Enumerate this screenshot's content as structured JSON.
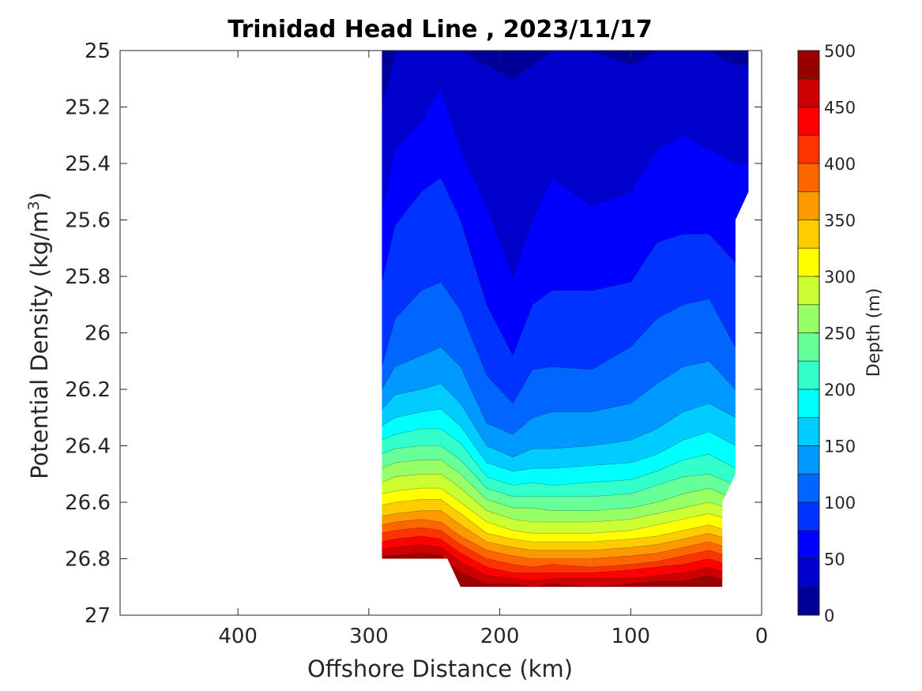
{
  "chart_data": {
    "type": "contourf",
    "title": "Trinidad Head Line , 2023/11/17",
    "xlabel": "Offshore Distance (km)",
    "ylabel_main": "Potential Density (kg/m",
    "ylabel_sup": "3",
    "ylabel_tail": ")",
    "xlim": [
      490,
      0
    ],
    "x_reversed": true,
    "ylim": [
      25,
      27
    ],
    "y_reversed": true,
    "xticks": [
      400,
      300,
      200,
      100,
      0
    ],
    "xtick_labels": [
      "400",
      "300",
      "200",
      "100",
      "0"
    ],
    "yticks": [
      25,
      25.2,
      25.4,
      25.6,
      25.8,
      26,
      26.2,
      26.4,
      26.6,
      26.8,
      27
    ],
    "ytick_labels": [
      "25",
      "25.2",
      "25.4",
      "25.6",
      "25.8",
      "26",
      "26.2",
      "26.4",
      "26.6",
      "26.8",
      "27"
    ],
    "colorbar": {
      "label": "Depth (m)",
      "colormap": "jet",
      "clim": [
        0,
        500
      ],
      "level_step": 25,
      "ticks": [
        0,
        50,
        100,
        150,
        200,
        250,
        300,
        350,
        400,
        450,
        500
      ],
      "tick_labels": [
        "0",
        "50",
        "100",
        "150",
        "200",
        "250",
        "300",
        "350",
        "400",
        "450",
        "500"
      ]
    },
    "data_extent": {
      "x_outline": [
        290,
        240,
        230,
        30,
        30,
        20,
        20,
        10,
        10,
        290
      ],
      "y_outline": [
        26.8,
        26.8,
        26.9,
        26.9,
        26.6,
        26.5,
        25.6,
        25.5,
        25.0,
        25.0
      ]
    },
    "profiles": {
      "x": [
        290,
        280,
        260,
        245,
        230,
        210,
        190,
        175,
        160,
        130,
        100,
        80,
        60,
        40,
        20
      ],
      "y_at_depth": {
        "25": [
          25.2,
          25.0,
          25.0,
          25.0,
          25.0,
          25.05,
          25.1,
          25.05,
          25.0,
          25.0,
          25.05,
          25.0,
          25.0,
          25.0,
          25.05
        ],
        "50": [
          25.56,
          25.35,
          25.25,
          25.13,
          25.35,
          25.55,
          25.8,
          25.6,
          25.45,
          25.55,
          25.5,
          25.35,
          25.3,
          25.35,
          25.4
        ],
        "75": [
          25.82,
          25.62,
          25.5,
          25.45,
          25.6,
          25.9,
          26.08,
          25.9,
          25.85,
          25.85,
          25.82,
          25.68,
          25.65,
          25.65,
          25.75
        ],
        "100": [
          26.12,
          25.95,
          25.85,
          25.82,
          25.92,
          26.15,
          26.25,
          26.13,
          26.12,
          26.13,
          26.05,
          25.95,
          25.9,
          25.88,
          26.05
        ],
        "125": [
          26.2,
          26.12,
          26.08,
          26.05,
          26.12,
          26.32,
          26.36,
          26.3,
          26.28,
          26.28,
          26.25,
          26.18,
          26.12,
          26.1,
          26.2
        ],
        "150": [
          26.27,
          26.22,
          26.2,
          26.18,
          26.25,
          26.4,
          26.44,
          26.41,
          26.41,
          26.4,
          26.38,
          26.34,
          26.28,
          26.25,
          26.3
        ],
        "175": [
          26.33,
          26.3,
          26.28,
          26.27,
          26.33,
          26.46,
          26.49,
          26.48,
          26.48,
          26.47,
          26.46,
          26.43,
          26.38,
          26.35,
          26.4
        ],
        "200": [
          26.38,
          26.36,
          26.34,
          26.34,
          26.39,
          26.51,
          26.54,
          26.53,
          26.54,
          26.53,
          26.52,
          26.49,
          26.45,
          26.43,
          26.48
        ],
        "225": [
          26.43,
          26.41,
          26.4,
          26.4,
          26.45,
          26.55,
          26.58,
          26.58,
          26.58,
          26.58,
          26.57,
          26.54,
          26.51,
          26.5,
          26.54
        ],
        "250": [
          26.48,
          26.46,
          26.45,
          26.45,
          26.5,
          26.59,
          26.62,
          26.62,
          26.63,
          26.63,
          26.62,
          26.6,
          26.57,
          26.55,
          26.59
        ],
        "275": [
          26.53,
          26.51,
          26.5,
          26.5,
          26.55,
          26.63,
          26.66,
          26.67,
          26.67,
          26.67,
          26.66,
          26.64,
          26.62,
          26.6,
          26.63
        ],
        "300": [
          26.57,
          26.56,
          26.55,
          26.55,
          26.6,
          26.67,
          26.7,
          26.71,
          26.71,
          26.71,
          26.7,
          26.68,
          26.66,
          26.64,
          26.67
        ],
        "325": [
          26.61,
          26.6,
          26.59,
          26.59,
          26.64,
          26.71,
          26.73,
          26.74,
          26.74,
          26.74,
          26.73,
          26.72,
          26.7,
          26.68,
          26.71
        ],
        "350": [
          26.65,
          26.64,
          26.63,
          26.63,
          26.68,
          26.74,
          26.76,
          26.77,
          26.77,
          26.77,
          26.76,
          26.75,
          26.73,
          26.71,
          26.74
        ],
        "375": [
          26.68,
          26.67,
          26.66,
          26.67,
          26.72,
          26.77,
          26.79,
          26.8,
          26.8,
          26.8,
          26.79,
          26.78,
          26.76,
          26.74,
          26.77
        ],
        "400": [
          26.71,
          26.7,
          26.69,
          26.7,
          26.75,
          26.8,
          26.82,
          26.83,
          26.82,
          26.83,
          26.82,
          26.81,
          26.79,
          26.77,
          26.8
        ],
        "425": [
          26.74,
          26.73,
          26.72,
          26.73,
          26.78,
          26.83,
          26.85,
          26.85,
          26.85,
          26.85,
          26.84,
          26.83,
          26.82,
          26.8,
          26.83
        ],
        "450": [
          26.77,
          26.76,
          26.75,
          26.76,
          26.81,
          26.86,
          26.87,
          26.88,
          26.87,
          26.87,
          26.87,
          26.86,
          26.85,
          26.83,
          26.86
        ],
        "475": [
          26.79,
          26.79,
          26.78,
          26.79,
          26.85,
          26.89,
          26.89,
          26.9,
          26.89,
          26.9,
          26.89,
          26.88,
          26.88,
          26.86,
          26.89
        ]
      }
    }
  }
}
